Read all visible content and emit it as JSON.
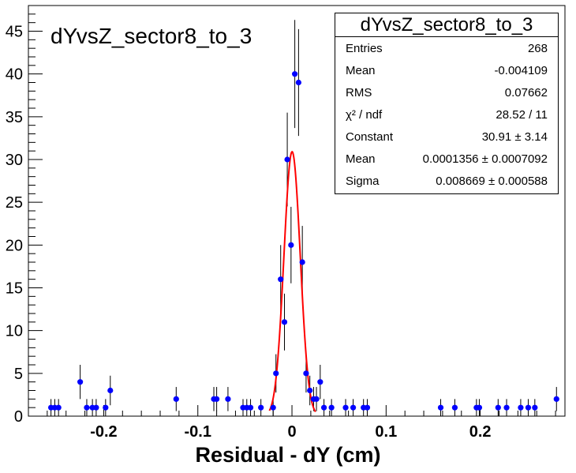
{
  "chart_data": {
    "type": "scatter",
    "title": "dYvsZ_sector8_to_3",
    "xlabel": "Residual - dY (cm)",
    "ylabel": "",
    "xlim": [
      -0.28,
      0.29
    ],
    "ylim": [
      0,
      48
    ],
    "x_ticks": [
      "-0.2",
      "-0.1",
      "0",
      "0.1",
      "0.2"
    ],
    "y_ticks": [
      "0",
      "5",
      "10",
      "15",
      "20",
      "25",
      "30",
      "35",
      "40",
      "45"
    ],
    "series": [
      {
        "marker_color": "#0000ff",
        "points": [
          {
            "x": -0.256,
            "y": 1,
            "err": 1
          },
          {
            "x": -0.252,
            "y": 1,
            "err": 1
          },
          {
            "x": -0.248,
            "y": 1,
            "err": 1
          },
          {
            "x": -0.225,
            "y": 4,
            "err": 2
          },
          {
            "x": -0.218,
            "y": 1,
            "err": 1
          },
          {
            "x": -0.212,
            "y": 1,
            "err": 1
          },
          {
            "x": -0.208,
            "y": 1,
            "err": 1
          },
          {
            "x": -0.198,
            "y": 1,
            "err": 1
          },
          {
            "x": -0.193,
            "y": 3,
            "err": 1.73
          },
          {
            "x": -0.123,
            "y": 2,
            "err": 1.41
          },
          {
            "x": -0.083,
            "y": 2,
            "err": 1.41
          },
          {
            "x": -0.08,
            "y": 2,
            "err": 1.41
          },
          {
            "x": -0.068,
            "y": 2,
            "err": 1.41
          },
          {
            "x": -0.052,
            "y": 1,
            "err": 1
          },
          {
            "x": -0.048,
            "y": 1,
            "err": 1
          },
          {
            "x": -0.044,
            "y": 1,
            "err": 1
          },
          {
            "x": -0.033,
            "y": 1,
            "err": 1
          },
          {
            "x": -0.02,
            "y": 1,
            "err": 1
          },
          {
            "x": -0.017,
            "y": 5,
            "err": 2.24
          },
          {
            "x": -0.012,
            "y": 16,
            "err": 4
          },
          {
            "x": -0.008,
            "y": 11,
            "err": 3.32
          },
          {
            "x": -0.005,
            "y": 30,
            "err": 5.48
          },
          {
            "x": -0.001,
            "y": 20,
            "err": 4.47
          },
          {
            "x": 0.003,
            "y": 40,
            "err": 6.32
          },
          {
            "x": 0.007,
            "y": 39,
            "err": 6.24
          },
          {
            "x": 0.011,
            "y": 18,
            "err": 4.24
          },
          {
            "x": 0.015,
            "y": 5,
            "err": 2.24
          },
          {
            "x": 0.019,
            "y": 3,
            "err": 1.73
          },
          {
            "x": 0.023,
            "y": 2,
            "err": 1.41
          },
          {
            "x": 0.026,
            "y": 2,
            "err": 1.41
          },
          {
            "x": 0.03,
            "y": 4,
            "err": 2
          },
          {
            "x": 0.034,
            "y": 1,
            "err": 1
          },
          {
            "x": 0.042,
            "y": 1,
            "err": 1
          },
          {
            "x": 0.057,
            "y": 1,
            "err": 1
          },
          {
            "x": 0.065,
            "y": 1,
            "err": 1
          },
          {
            "x": 0.076,
            "y": 1,
            "err": 1
          },
          {
            "x": 0.08,
            "y": 1,
            "err": 1
          },
          {
            "x": 0.158,
            "y": 1,
            "err": 1
          },
          {
            "x": 0.173,
            "y": 1,
            "err": 1
          },
          {
            "x": 0.196,
            "y": 1,
            "err": 1
          },
          {
            "x": 0.199,
            "y": 1,
            "err": 1
          },
          {
            "x": 0.219,
            "y": 1,
            "err": 1
          },
          {
            "x": 0.228,
            "y": 1,
            "err": 1
          },
          {
            "x": 0.243,
            "y": 1,
            "err": 1
          },
          {
            "x": 0.251,
            "y": 1,
            "err": 1
          },
          {
            "x": 0.258,
            "y": 1,
            "err": 1
          },
          {
            "x": 0.281,
            "y": 2,
            "err": 1.41
          }
        ]
      }
    ],
    "fit": {
      "function": "gaussian",
      "color": "#ff0000",
      "constant": 30.91,
      "mean": 0.0001356,
      "sigma": 0.008669,
      "range": [
        -0.024,
        0.025
      ]
    },
    "stats_box": {
      "title": "dYvsZ_sector8_to_3",
      "rows": [
        {
          "key": "Entries",
          "value": "268"
        },
        {
          "key": "Mean",
          "value": "-0.004109"
        },
        {
          "key": "RMS",
          "value": "0.07662"
        },
        {
          "key": "χ² / ndf",
          "value": "28.52 / 11"
        },
        {
          "key": "Constant",
          "value": "30.91 ± 3.14"
        },
        {
          "key": "Mean",
          "value": "0.0001356 ± 0.0007092"
        },
        {
          "key": "Sigma",
          "value": "0.008669 ± 0.000588"
        }
      ]
    },
    "grid": false,
    "legend": "top-right"
  }
}
